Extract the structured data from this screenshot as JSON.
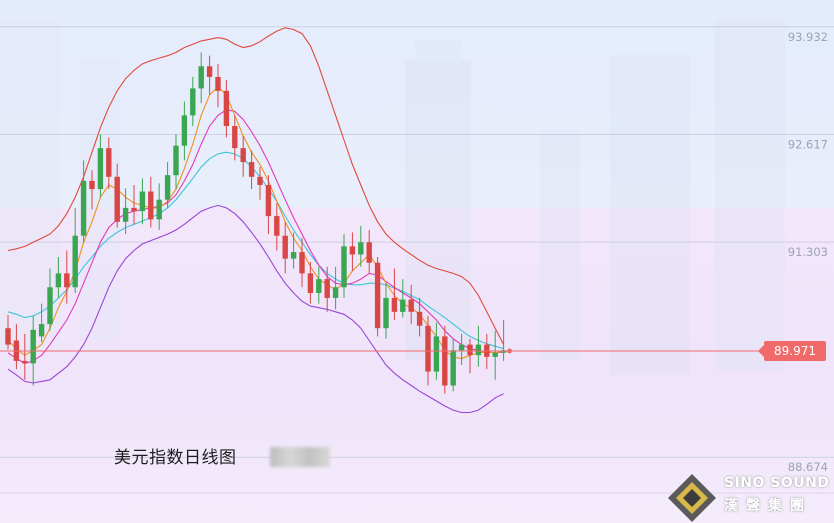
{
  "chart_data": {
    "type": "candlestick",
    "caption": "美元指数日线图",
    "price_ticks": [
      "93.932",
      "92.617",
      "91.303",
      "88.674"
    ],
    "tick_values": [
      93.932,
      92.617,
      91.303,
      88.674
    ],
    "ylim": [
      87.87,
      94.26
    ],
    "current_price": {
      "label": "89.971",
      "value": 89.971
    },
    "candles": [
      [
        90.25,
        90.05,
        90.41,
        89.99
      ],
      [
        90.1,
        89.85,
        90.3,
        89.75
      ],
      [
        89.85,
        89.82,
        90.18,
        89.62
      ],
      [
        89.82,
        90.23,
        90.4,
        89.55
      ],
      [
        90.15,
        90.3,
        90.55,
        90.08
      ],
      [
        90.3,
        90.75,
        90.98,
        90.22
      ],
      [
        90.75,
        90.92,
        91.12,
        90.62
      ],
      [
        90.92,
        90.75,
        91.2,
        90.55
      ],
      [
        90.75,
        91.38,
        91.72,
        90.68
      ],
      [
        91.38,
        92.05,
        92.3,
        91.3
      ],
      [
        92.05,
        91.95,
        92.18,
        91.7
      ],
      [
        91.95,
        92.45,
        92.62,
        91.85
      ],
      [
        92.45,
        92.1,
        92.58,
        91.95
      ],
      [
        92.1,
        91.55,
        92.26,
        91.48
      ],
      [
        91.55,
        91.72,
        91.96,
        91.4
      ],
      [
        91.72,
        91.68,
        92.0,
        91.52
      ],
      [
        91.68,
        91.92,
        92.08,
        91.52
      ],
      [
        91.92,
        91.58,
        92.1,
        91.48
      ],
      [
        91.58,
        91.82,
        92.02,
        91.45
      ],
      [
        91.82,
        92.12,
        92.28,
        91.72
      ],
      [
        92.12,
        92.48,
        92.62,
        91.95
      ],
      [
        92.48,
        92.85,
        93.02,
        92.3
      ],
      [
        92.85,
        93.18,
        93.32,
        92.72
      ],
      [
        93.18,
        93.45,
        93.62,
        93.0
      ],
      [
        93.45,
        93.32,
        93.58,
        93.1
      ],
      [
        93.32,
        93.15,
        93.48,
        92.95
      ],
      [
        93.15,
        92.72,
        93.28,
        92.58
      ],
      [
        92.72,
        92.45,
        92.85,
        92.3
      ],
      [
        92.45,
        92.28,
        92.6,
        92.1
      ],
      [
        92.28,
        92.1,
        92.42,
        91.95
      ],
      [
        92.1,
        92.0,
        92.22,
        91.82
      ],
      [
        92.0,
        91.62,
        92.12,
        91.4
      ],
      [
        91.62,
        91.38,
        91.78,
        91.2
      ],
      [
        91.38,
        91.1,
        91.55,
        90.92
      ],
      [
        91.1,
        91.18,
        91.42,
        90.98
      ],
      [
        91.18,
        90.92,
        91.35,
        90.75
      ],
      [
        90.92,
        90.68,
        91.06,
        90.55
      ],
      [
        90.68,
        90.85,
        91.0,
        90.55
      ],
      [
        90.85,
        90.62,
        91.0,
        90.45
      ],
      [
        90.62,
        90.75,
        91.0,
        90.48
      ],
      [
        90.75,
        91.25,
        91.4,
        90.62
      ],
      [
        91.25,
        91.15,
        91.42,
        90.95
      ],
      [
        91.15,
        91.3,
        91.5,
        91.0
      ],
      [
        91.3,
        91.05,
        91.45,
        90.92
      ],
      [
        91.05,
        90.25,
        91.12,
        90.15
      ],
      [
        90.25,
        90.62,
        90.8,
        90.12
      ],
      [
        90.62,
        90.45,
        90.98,
        90.35
      ],
      [
        90.45,
        90.6,
        90.85,
        90.38
      ],
      [
        90.6,
        90.45,
        90.78,
        90.3
      ],
      [
        90.45,
        90.28,
        90.62,
        90.15
      ],
      [
        90.28,
        89.72,
        90.4,
        89.55
      ],
      [
        89.72,
        90.15,
        90.32,
        89.62
      ],
      [
        90.15,
        89.55,
        90.28,
        89.45
      ],
      [
        89.55,
        89.98,
        90.12,
        89.48
      ],
      [
        89.98,
        90.05,
        90.18,
        89.8
      ],
      [
        90.05,
        89.92,
        90.12,
        89.7
      ],
      [
        89.92,
        90.05,
        90.28,
        89.78
      ],
      [
        90.05,
        89.9,
        90.18,
        89.75
      ],
      [
        89.9,
        89.95,
        90.22,
        89.62
      ],
      [
        89.95,
        89.98,
        90.35,
        89.85
      ]
    ],
    "ma_orange": [
      90.1,
      90.0,
      89.92,
      89.98,
      90.05,
      90.25,
      90.5,
      90.7,
      90.95,
      91.3,
      91.55,
      91.85,
      92.0,
      91.95,
      91.85,
      91.78,
      91.75,
      91.72,
      91.72,
      91.8,
      91.95,
      92.2,
      92.5,
      92.85,
      93.1,
      93.2,
      93.1,
      92.85,
      92.6,
      92.4,
      92.25,
      92.05,
      91.8,
      91.55,
      91.35,
      91.2,
      91.0,
      90.85,
      90.78,
      90.72,
      90.8,
      90.95,
      91.05,
      91.15,
      91.0,
      90.8,
      90.65,
      90.55,
      90.5,
      90.42,
      90.28,
      90.15,
      89.98,
      89.9,
      89.88,
      89.92,
      89.95,
      89.96,
      89.95,
      89.97
    ],
    "ma_magenta": [
      89.95,
      89.88,
      89.82,
      89.85,
      89.92,
      90.05,
      90.2,
      90.35,
      90.55,
      90.8,
      91.05,
      91.3,
      91.48,
      91.58,
      91.65,
      91.68,
      91.7,
      91.72,
      91.74,
      91.78,
      91.88,
      92.05,
      92.25,
      92.5,
      92.72,
      92.85,
      92.92,
      92.9,
      92.8,
      92.65,
      92.48,
      92.28,
      92.05,
      91.82,
      91.6,
      91.4,
      91.2,
      91.02,
      90.88,
      90.8,
      90.78,
      90.8,
      90.85,
      90.92,
      90.9,
      90.82,
      90.75,
      90.68,
      90.62,
      90.55,
      90.45,
      90.35,
      90.22,
      90.12,
      90.05,
      90.0,
      89.98,
      89.96,
      89.95,
      89.96
    ],
    "ma_cyan": [
      90.45,
      90.42,
      90.38,
      90.4,
      90.45,
      90.52,
      90.62,
      90.72,
      90.85,
      91.0,
      91.12,
      91.25,
      91.35,
      91.42,
      91.48,
      91.52,
      91.56,
      91.6,
      91.65,
      91.72,
      91.82,
      91.95,
      92.08,
      92.22,
      92.32,
      92.38,
      92.4,
      92.38,
      92.32,
      92.22,
      92.1,
      91.95,
      91.8,
      91.62,
      91.45,
      91.3,
      91.15,
      91.02,
      90.92,
      90.85,
      90.8,
      90.78,
      90.78,
      90.8,
      90.8,
      90.78,
      90.74,
      90.7,
      90.65,
      90.6,
      90.52,
      90.45,
      90.38,
      90.3,
      90.22,
      90.15,
      90.1,
      90.06,
      90.03,
      90.0
    ],
    "band_upper": [
      91.2,
      91.22,
      91.25,
      91.3,
      91.35,
      91.4,
      91.5,
      91.65,
      91.85,
      92.1,
      92.4,
      92.7,
      92.95,
      93.15,
      93.3,
      93.4,
      93.48,
      93.52,
      93.55,
      93.58,
      93.62,
      93.68,
      93.72,
      93.76,
      93.78,
      93.8,
      93.78,
      93.72,
      93.68,
      93.7,
      93.75,
      93.82,
      93.88,
      93.92,
      93.9,
      93.85,
      93.7,
      93.45,
      93.15,
      92.85,
      92.55,
      92.25,
      92.0,
      91.75,
      91.55,
      91.4,
      91.3,
      91.22,
      91.15,
      91.08,
      91.02,
      90.98,
      90.95,
      90.92,
      90.88,
      90.8,
      90.65,
      90.45,
      90.25,
      90.05
    ],
    "band_lower": [
      89.75,
      89.68,
      89.6,
      89.58,
      89.6,
      89.62,
      89.7,
      89.78,
      89.9,
      90.05,
      90.25,
      90.5,
      90.75,
      90.95,
      91.1,
      91.2,
      91.28,
      91.32,
      91.36,
      91.4,
      91.45,
      91.52,
      91.6,
      91.68,
      91.72,
      91.75,
      91.72,
      91.65,
      91.55,
      91.42,
      91.28,
      91.12,
      90.95,
      90.8,
      90.68,
      90.58,
      90.52,
      90.5,
      90.48,
      90.45,
      90.42,
      90.35,
      90.25,
      90.1,
      89.95,
      89.8,
      89.7,
      89.62,
      89.55,
      89.48,
      89.42,
      89.36,
      89.3,
      89.25,
      89.22,
      89.22,
      89.25,
      89.32,
      89.4,
      89.45
    ]
  },
  "logo": {
    "en": "SINO SOUND",
    "cn": "漢聲集團"
  }
}
